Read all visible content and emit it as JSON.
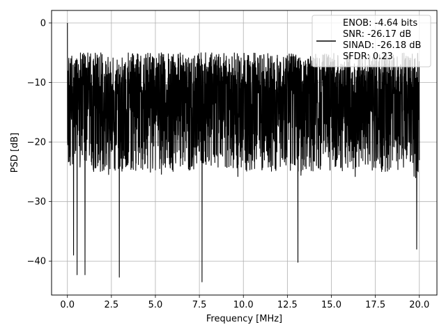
{
  "chart_data": {
    "type": "line",
    "title": "",
    "xlabel": "Frequency [MHz]",
    "ylabel": "PSD [dB]",
    "xlim": [
      -0.9,
      21.0
    ],
    "ylim": [
      -45.7,
      2.1
    ],
    "xticks": [
      0.0,
      2.5,
      5.0,
      7.5,
      10.0,
      12.5,
      15.0,
      17.5,
      20.0
    ],
    "xtick_labels": [
      "0.0",
      "2.5",
      "5.0",
      "7.5",
      "10.0",
      "12.5",
      "15.0",
      "17.5",
      "20.0"
    ],
    "yticks": [
      0,
      -10,
      -20,
      -30,
      -40
    ],
    "ytick_labels": [
      "0",
      "−10",
      "−20",
      "−30",
      "−40"
    ],
    "grid": true,
    "legend_position": "top-right",
    "series": [
      {
        "name": "ENOB: -4.64 bits\nSNR: -26.17 dB\nSINAD: -26.18 dB\nSFDR: 0.23",
        "color": "#000000",
        "description": "dense noise spectrum",
        "x_range": [
          0.0,
          20.0
        ],
        "peak": {
          "x": 0.0,
          "y": 0.0
        },
        "typical_upper_envelope": -5,
        "typical_lower_envelope": -28,
        "notable_minima": [
          {
            "x": 0.35,
            "y": -39.0
          },
          {
            "x": 0.55,
            "y": -42.3
          },
          {
            "x": 1.0,
            "y": -42.3
          },
          {
            "x": 2.95,
            "y": -42.7
          },
          {
            "x": 7.65,
            "y": -43.5
          },
          {
            "x": 13.1,
            "y": -40.2
          },
          {
            "x": 19.85,
            "y": -38.0
          }
        ]
      }
    ],
    "legend_lines": [
      "ENOB: -4.64 bits",
      "SNR: -26.17 dB",
      "SINAD: -26.18 dB",
      "SFDR: 0.23"
    ]
  }
}
